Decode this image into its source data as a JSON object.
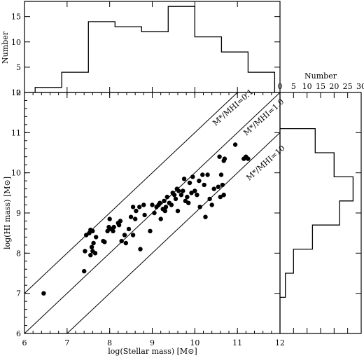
{
  "chart_data": [
    {
      "type": "scatter",
      "panel": "main",
      "xlabel": "log(Stellar mass) [M⊙]",
      "ylabel": "log(HI mass) [M⊙]",
      "xlim": [
        6,
        12
      ],
      "ylim": [
        6,
        12
      ],
      "xticks": [
        6,
        7,
        8,
        9,
        10,
        11,
        12
      ],
      "yticks": [
        6,
        7,
        8,
        9,
        10,
        11,
        12
      ],
      "annotations": [
        "M*/MHI=0.1",
        "M*/MHI=1.0",
        "M*/MHI=10"
      ],
      "reference_lines": [
        {
          "label": "M*/MHI=0.1",
          "offset": 1
        },
        {
          "label": "M*/MHI=1.0",
          "offset": 0
        },
        {
          "label": "M*/MHI=10",
          "offset": -1
        }
      ],
      "points": [
        [
          6.45,
          7.0
        ],
        [
          7.4,
          7.55
        ],
        [
          7.42,
          8.05
        ],
        [
          7.45,
          8.45
        ],
        [
          7.52,
          8.5
        ],
        [
          7.55,
          8.58
        ],
        [
          7.6,
          8.55
        ],
        [
          7.55,
          7.95
        ],
        [
          7.6,
          8.05
        ],
        [
          7.62,
          8.25
        ],
        [
          7.58,
          8.15
        ],
        [
          7.68,
          8.4
        ],
        [
          7.66,
          8.0
        ],
        [
          7.85,
          8.3
        ],
        [
          7.88,
          8.28
        ],
        [
          7.95,
          8.55
        ],
        [
          7.98,
          8.65
        ],
        [
          8.0,
          8.85
        ],
        [
          8.03,
          8.6
        ],
        [
          8.08,
          8.55
        ],
        [
          8.1,
          8.65
        ],
        [
          8.2,
          8.75
        ],
        [
          8.22,
          8.7
        ],
        [
          8.25,
          8.8
        ],
        [
          8.28,
          8.3
        ],
        [
          8.35,
          8.45
        ],
        [
          8.38,
          8.25
        ],
        [
          8.45,
          8.6
        ],
        [
          8.5,
          8.9
        ],
        [
          8.55,
          9.15
        ],
        [
          8.55,
          8.45
        ],
        [
          8.6,
          8.85
        ],
        [
          8.62,
          9.05
        ],
        [
          8.7,
          9.15
        ],
        [
          8.72,
          8.1
        ],
        [
          8.8,
          9.2
        ],
        [
          8.82,
          8.95
        ],
        [
          8.95,
          8.55
        ],
        [
          9.0,
          9.2
        ],
        [
          9.05,
          9.0
        ],
        [
          9.1,
          9.15
        ],
        [
          9.15,
          9.2
        ],
        [
          9.18,
          9.25
        ],
        [
          9.2,
          8.85
        ],
        [
          9.25,
          9.1
        ],
        [
          9.28,
          9.3
        ],
        [
          9.3,
          9.05
        ],
        [
          9.32,
          9.15
        ],
        [
          9.35,
          9.4
        ],
        [
          9.4,
          9.25
        ],
        [
          9.45,
          9.2
        ],
        [
          9.48,
          9.5
        ],
        [
          9.52,
          9.45
        ],
        [
          9.55,
          9.35
        ],
        [
          9.58,
          9.6
        ],
        [
          9.6,
          9.05
        ],
        [
          9.62,
          9.55
        ],
        [
          9.68,
          9.45
        ],
        [
          9.72,
          9.55
        ],
        [
          9.75,
          9.85
        ],
        [
          9.78,
          9.3
        ],
        [
          9.82,
          9.4
        ],
        [
          9.85,
          9.25
        ],
        [
          9.88,
          9.75
        ],
        [
          9.92,
          9.5
        ],
        [
          9.95,
          9.9
        ],
        [
          10.0,
          9.55
        ],
        [
          10.05,
          9.45
        ],
        [
          10.1,
          9.8
        ],
        [
          10.12,
          9.15
        ],
        [
          10.18,
          9.95
        ],
        [
          10.22,
          9.7
        ],
        [
          10.25,
          8.9
        ],
        [
          10.3,
          9.95
        ],
        [
          10.35,
          9.35
        ],
        [
          10.4,
          9.2
        ],
        [
          10.45,
          9.6
        ],
        [
          10.55,
          9.65
        ],
        [
          10.58,
          10.4
        ],
        [
          10.6,
          9.4
        ],
        [
          10.62,
          9.95
        ],
        [
          10.65,
          9.7
        ],
        [
          10.68,
          10.3
        ],
        [
          10.68,
          9.45
        ],
        [
          10.7,
          10.35
        ],
        [
          10.95,
          10.7
        ],
        [
          11.15,
          10.35
        ],
        [
          11.2,
          10.4
        ],
        [
          11.25,
          10.35
        ]
      ]
    },
    {
      "type": "bar",
      "panel": "top-histogram",
      "ylabel": "Number",
      "xlim": [
        6,
        12
      ],
      "ylim": [
        0,
        18
      ],
      "yticks": [
        0,
        5,
        10,
        15
      ],
      "bin_edges": [
        6.25,
        6.875,
        7.5,
        8.125,
        8.75,
        9.375,
        10.0,
        10.625,
        11.25,
        11.875
      ],
      "values": [
        1,
        4,
        14,
        13,
        12,
        17,
        11,
        8,
        4
      ]
    },
    {
      "type": "bar",
      "panel": "right-histogram",
      "xlabel": "Number",
      "xlim": [
        0,
        30
      ],
      "xticks": [
        0,
        5,
        10,
        15,
        20,
        25,
        30
      ],
      "ylim": [
        6,
        12
      ],
      "bin_edges": [
        6.9,
        7.5,
        8.1,
        8.7,
        9.3,
        9.9,
        10.5,
        11.1
      ],
      "values": [
        2,
        5,
        12,
        22,
        27,
        20,
        13
      ]
    }
  ]
}
